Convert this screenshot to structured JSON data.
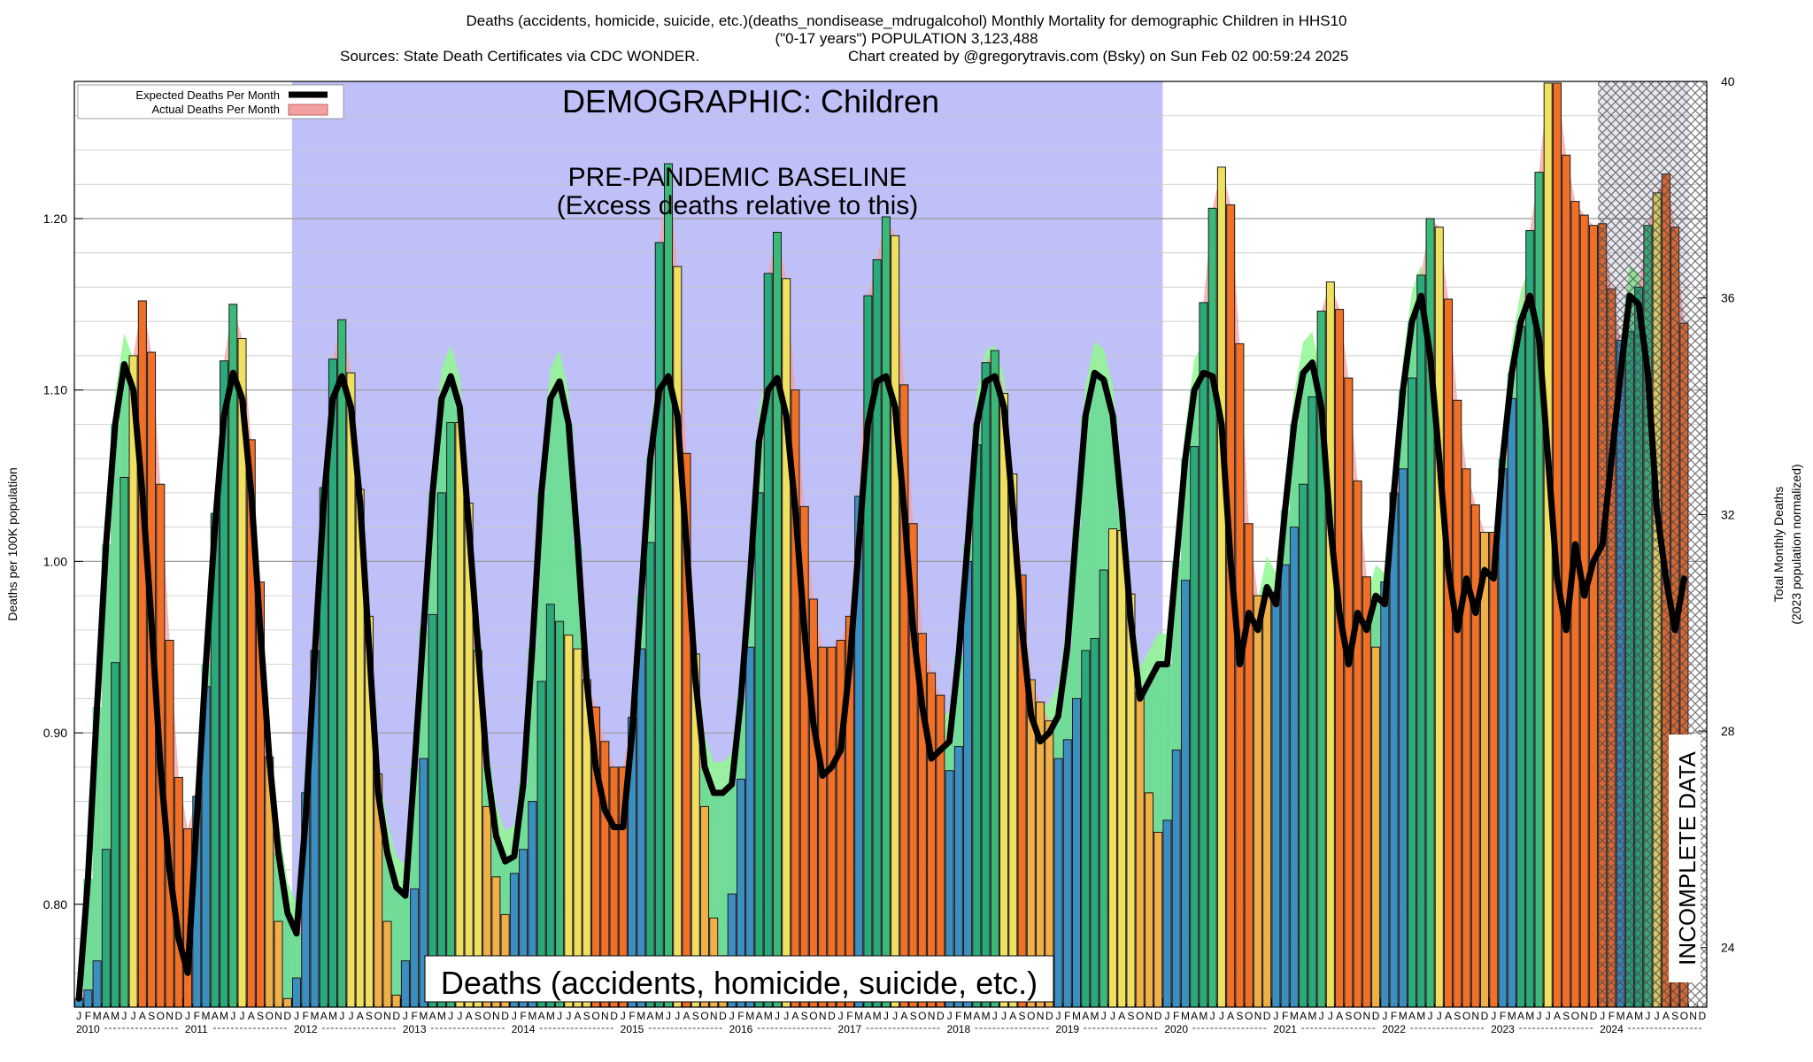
{
  "header": {
    "line1": "Deaths (accidents, homicide, suicide, etc.)(deaths_nondisease_mdrugalcohol) Monthly Mortality for demographic Children in HHS10",
    "line2": "(\"0-17 years\") POPULATION 3,123,488",
    "sources": "Sources: State Death Certificates via CDC WONDER.",
    "credit": "Chart created by @gregorytravis.com (Bsky) on Sun Feb 02 00:59:24 2025"
  },
  "colors": {
    "baseline_region": "#c0c0f8",
    "expected_line": "#000000",
    "actual_fill": "#f4a0a0",
    "excess_fill": "#70dc98",
    "seasonal_band": "#90f890",
    "bar_blue": "#3a8fc0",
    "bar_teal": "#2aaa7a",
    "bar_green": "#3cb878",
    "bar_yellow": "#f0e060",
    "bar_orange": "#f0b048",
    "bar_dark_orange": "#f07028",
    "hatch": "#555555"
  },
  "chart_data": {
    "type": "bar",
    "title": "DEMOGRAPHIC: Children",
    "ylabel": "Deaths per 100K population",
    "y2label": "Total Monthly Deaths",
    "y2sublabel": "(2023 population normalized)",
    "ylim": [
      0.74,
      1.28
    ],
    "y2lim": [
      22.9,
      40.0
    ],
    "yticks": [
      0.8,
      0.9,
      1.0,
      1.1,
      1.2
    ],
    "yticklabels": [
      "0.80",
      "0.90",
      "1.00",
      "1.10",
      "1.20"
    ],
    "y2ticks": [
      24,
      28,
      32,
      36,
      40
    ],
    "years": [
      "2010",
      "2011",
      "2012",
      "2013",
      "2014",
      "2015",
      "2016",
      "2017",
      "2018",
      "2019",
      "2020",
      "2021",
      "2022",
      "2023",
      "2024"
    ],
    "month_letters": [
      "J",
      "F",
      "M",
      "A",
      "M",
      "J",
      "J",
      "A",
      "S",
      "O",
      "N",
      "D"
    ],
    "grid": true,
    "legend_position": "top-left",
    "legend": [
      {
        "label": "Expected Deaths Per Month",
        "style": "line"
      },
      {
        "label": "Actual Deaths Per Month",
        "style": "fill"
      }
    ],
    "annotations": {
      "baseline_title": "PRE-PANDEMIC BASELINE",
      "baseline_subtitle": "(Excess deaths relative to this)",
      "category_label": "Deaths (accidents, homicide, suicide, etc.)",
      "incomplete": "INCOMPLETE DATA"
    },
    "baseline_period": [
      "2012-01",
      "2019-12"
    ],
    "incomplete_period": [
      "2024-01",
      "2024-10"
    ],
    "series": [
      {
        "name": "Actual Deaths Per Month",
        "start": "2010-01",
        "values": [
          0.745,
          0.75,
          0.767,
          0.832,
          0.941,
          1.049,
          1.12,
          1.152,
          1.122,
          1.045,
          0.954,
          0.874,
          0.844,
          0.863,
          0.927,
          1.028,
          1.117,
          1.15,
          1.13,
          1.071,
          0.988,
          0.886,
          0.79,
          0.745,
          0.757,
          0.865,
          0.948,
          1.043,
          1.118,
          1.141,
          1.11,
          1.042,
          0.968,
          0.876,
          0.79,
          0.747,
          0.767,
          0.809,
          0.885,
          0.969,
          1.04,
          1.081,
          1.081,
          1.034,
          0.948,
          0.857,
          0.816,
          0.794,
          0.818,
          0.832,
          0.86,
          0.93,
          0.975,
          0.965,
          0.957,
          0.949,
          0.931,
          0.915,
          0.895,
          0.88,
          0.88,
          0.909,
          0.949,
          1.011,
          1.186,
          1.232,
          1.172,
          1.063,
          0.946,
          0.857,
          0.792,
          0.77,
          0.806,
          0.873,
          0.95,
          1.04,
          1.168,
          1.192,
          1.165,
          1.1,
          1.032,
          0.978,
          0.95,
          0.95,
          0.954,
          0.968,
          1.038,
          1.155,
          1.176,
          1.201,
          1.19,
          1.103,
          1.022,
          0.958,
          0.935,
          0.922,
          0.878,
          0.892,
          1.0,
          1.068,
          1.116,
          1.123,
          1.098,
          1.051,
          0.992,
          0.931,
          0.918,
          0.907,
          0.885,
          0.896,
          0.92,
          0.948,
          0.955,
          0.995,
          1.019,
          1.018,
          0.981,
          0.924,
          0.865,
          0.842,
          0.849,
          0.89,
          0.989,
          1.067,
          1.151,
          1.206,
          1.23,
          1.208,
          1.127,
          1.022,
          0.98,
          0.982,
          0.982,
          0.998,
          1.02,
          1.045,
          1.096,
          1.146,
          1.163,
          1.147,
          1.107,
          1.047,
          0.991,
          0.95,
          0.988,
          1.04,
          1.054,
          1.107,
          1.167,
          1.2,
          1.195,
          1.153,
          1.094,
          1.054,
          1.033,
          1.017,
          1.017,
          1.054,
          1.095,
          1.137,
          1.193,
          1.227,
          1.279,
          1.279,
          1.237,
          1.21,
          1.202,
          1.196,
          1.197,
          1.159,
          1.129,
          1.134,
          1.16,
          1.196,
          1.215,
          1.226,
          1.195,
          1.139
        ]
      },
      {
        "name": "Expected Deaths Per Month",
        "start": "2010-01",
        "values": [
          0.745,
          0.815,
          0.915,
          1.01,
          1.08,
          1.115,
          1.1,
          1.04,
          0.965,
          0.88,
          0.82,
          0.78,
          0.76,
          0.85,
          0.94,
          1.02,
          1.085,
          1.11,
          1.095,
          1.04,
          0.96,
          0.885,
          0.83,
          0.795,
          0.783,
          0.85,
          0.945,
          1.035,
          1.095,
          1.108,
          1.09,
          1.035,
          0.95,
          0.865,
          0.83,
          0.81,
          0.805,
          0.88,
          0.96,
          1.04,
          1.095,
          1.108,
          1.09,
          1.02,
          0.95,
          0.88,
          0.84,
          0.825,
          0.828,
          0.87,
          0.95,
          1.04,
          1.095,
          1.105,
          1.08,
          1.01,
          0.93,
          0.88,
          0.855,
          0.845,
          0.845,
          0.9,
          0.98,
          1.06,
          1.1,
          1.108,
          1.085,
          1.01,
          0.93,
          0.88,
          0.865,
          0.865,
          0.87,
          0.92,
          0.99,
          1.07,
          1.1,
          1.107,
          1.085,
          1.03,
          0.96,
          0.905,
          0.875,
          0.88,
          0.89,
          0.94,
          1.01,
          1.08,
          1.105,
          1.108,
          1.09,
          1.03,
          0.96,
          0.915,
          0.885,
          0.89,
          0.895,
          0.945,
          1.01,
          1.08,
          1.105,
          1.108,
          1.09,
          1.03,
          0.96,
          0.91,
          0.895,
          0.9,
          0.91,
          0.95,
          1.02,
          1.085,
          1.11,
          1.106,
          1.085,
          1.03,
          0.965,
          0.92,
          0.93,
          0.94,
          0.94,
          1.0,
          1.06,
          1.1,
          1.11,
          1.108,
          1.08,
          1.0,
          0.94,
          0.97,
          0.96,
          0.985,
          0.975,
          1.03,
          1.08,
          1.11,
          1.116,
          1.09,
          1.02,
          0.97,
          0.94,
          0.97,
          0.96,
          0.98,
          0.975,
          1.04,
          1.1,
          1.14,
          1.155,
          1.12,
          1.06,
          0.995,
          0.96,
          0.99,
          0.97,
          0.995,
          0.99,
          1.06,
          1.11,
          1.14,
          1.155,
          1.13,
          1.06,
          0.99,
          0.96,
          1.01,
          0.98,
          1.0,
          1.01,
          1.06,
          1.11,
          1.155,
          1.15,
          1.11,
          1.03,
          0.99,
          0.96,
          0.99
        ]
      }
    ]
  }
}
